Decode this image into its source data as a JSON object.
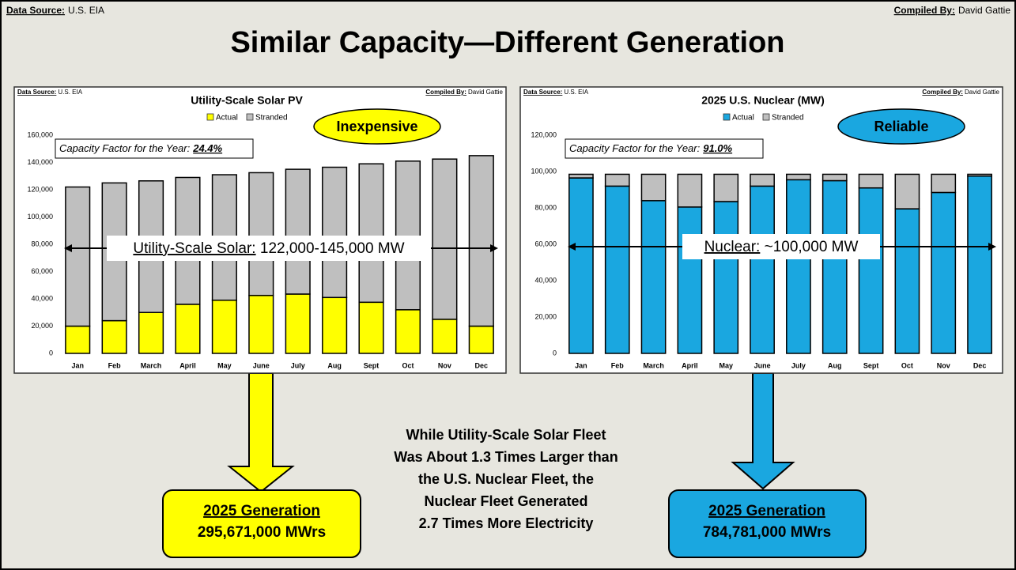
{
  "header": {
    "data_source_label": "Data Source:",
    "data_source": "U.S. EIA",
    "compiled_label": "Compiled By:",
    "compiled_by": "David Gattie",
    "title": "Similar Capacity—Different Generation"
  },
  "chart_data": [
    {
      "type": "bar",
      "stacked": true,
      "title": "Utility-Scale Solar PV",
      "source_label": "Data Source:",
      "source": "U.S. EIA",
      "compiled_label": "Compiled By:",
      "compiled_by": "David Gattie",
      "badge": "Inexpensive",
      "badge_color": "#ffff00",
      "cf_label": "Capacity Factor for the Year:",
      "cf_value": "24.4%",
      "range_label": "Utility-Scale Solar:",
      "range_text": " 122,000-145,000 MW",
      "categories": [
        "Jan",
        "Feb",
        "March",
        "April",
        "May",
        "June",
        "July",
        "Aug",
        "Sept",
        "Oct",
        "Nov",
        "Dec"
      ],
      "series": [
        {
          "name": "Actual",
          "color": "#ffff00",
          "values": [
            20000,
            24000,
            30000,
            36000,
            39000,
            42500,
            43500,
            41000,
            37500,
            32000,
            25000,
            20000
          ]
        },
        {
          "name": "Stranded",
          "color": "#bfbfbf",
          "values": [
            102000,
            101000,
            96500,
            93000,
            92000,
            90000,
            91500,
            95500,
            101500,
            109000,
            117500,
            125000
          ]
        }
      ],
      "ylim": [
        0,
        160000
      ],
      "yticks": [
        0,
        {
          "value": 20000,
          "label": "20,000"
        },
        {
          "value": 40000,
          "label": "40,000"
        },
        {
          "value": 60000,
          "label": "60,000"
        },
        {
          "value": 80000,
          "label": "80,000"
        },
        {
          "value": 100000,
          "label": "100,000"
        },
        {
          "value": 120000,
          "label": "120,000"
        },
        {
          "value": 140000,
          "label": "140,000"
        },
        {
          "value": 160000,
          "label": "160,000"
        }
      ]
    },
    {
      "type": "bar",
      "stacked": true,
      "title": "2025 U.S. Nuclear (MW)",
      "source_label": "Data Source:",
      "source": "U.S. EIA",
      "compiled_label": "Compiled By:",
      "compiled_by": "David Gattie",
      "badge": "Reliable",
      "badge_color": "#1aa7e0",
      "cf_label": "Capacity Factor for the Year:",
      "cf_value": "91.0%",
      "range_label": "Nuclear:",
      "range_text": " ~100,000 MW",
      "categories": [
        "Jan",
        "Feb",
        "March",
        "April",
        "May",
        "June",
        "July",
        "Aug",
        "Sept",
        "Oct",
        "Nov",
        "Dec"
      ],
      "series": [
        {
          "name": "Actual",
          "color": "#1aa7e0",
          "values": [
            96500,
            92000,
            84000,
            80500,
            83500,
            92000,
            95500,
            95000,
            91000,
            79500,
            88500,
            97500
          ]
        },
        {
          "name": "Stranded",
          "color": "#bfbfbf",
          "values": [
            2000,
            6500,
            14500,
            18000,
            15000,
            6500,
            3000,
            3500,
            7500,
            19000,
            10000,
            1000
          ]
        }
      ],
      "ylim": [
        0,
        120000
      ],
      "yticks": [
        0,
        {
          "value": 20000,
          "label": "20,000"
        },
        {
          "value": 40000,
          "label": "40,000"
        },
        {
          "value": 60000,
          "label": "60,000"
        },
        {
          "value": 80000,
          "label": "80,000"
        },
        {
          "value": 100000,
          "label": "100,000"
        },
        {
          "value": 120000,
          "label": "120,000"
        }
      ]
    }
  ],
  "summary": {
    "lines": [
      "While Utility-Scale Solar Fleet",
      "Was About 1.3 Times Larger than",
      "the U.S. Nuclear Fleet, the",
      "Nuclear Fleet Generated",
      "2.7 Times More Electricity"
    ]
  },
  "solar_box": {
    "heading": "2025 Generation",
    "value": "295,671,000 MWrs"
  },
  "nuclear_box": {
    "heading": "2025 Generation",
    "value": "784,781,000 MWrs"
  }
}
